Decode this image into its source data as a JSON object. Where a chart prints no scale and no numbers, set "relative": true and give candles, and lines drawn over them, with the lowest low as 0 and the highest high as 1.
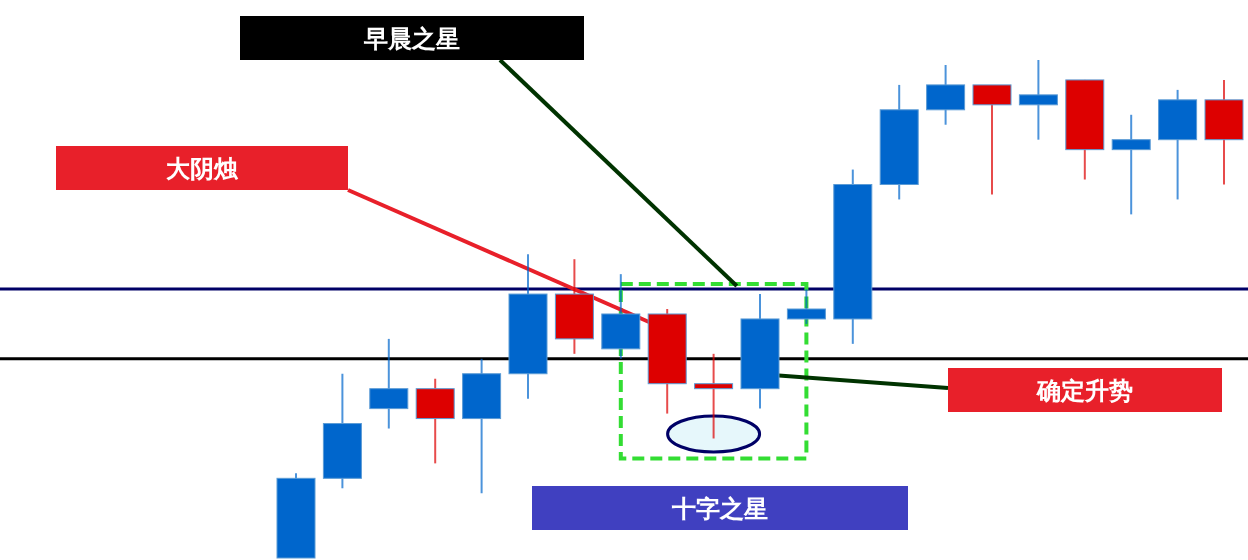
{
  "chart_data": {
    "type": "candlestick",
    "relative": true,
    "categories": [
      null,
      null,
      null,
      null,
      null,
      null,
      null,
      null,
      null,
      null,
      null,
      null,
      null,
      null,
      null,
      null,
      null,
      null,
      null,
      null,
      null
    ],
    "ohlc": [
      [
        0,
        0.17,
        0,
        0.16
      ],
      [
        0.16,
        0.37,
        0.14,
        0.27
      ],
      [
        0.3,
        0.44,
        0.26,
        0.34
      ],
      [
        0.34,
        0.36,
        0.19,
        0.28
      ],
      [
        0.28,
        0.4,
        0.13,
        0.37
      ],
      [
        0.37,
        0.61,
        0.32,
        0.53
      ],
      [
        0.53,
        0.6,
        0.41,
        0.44
      ],
      [
        0.42,
        0.57,
        0.4,
        0.49
      ],
      [
        0.49,
        0.5,
        0.29,
        0.35
      ],
      [
        0.35,
        0.41,
        0.24,
        0.34
      ],
      [
        0.34,
        0.53,
        0.3,
        0.48
      ],
      [
        0.48,
        0.54,
        0.47,
        0.5
      ],
      [
        0.48,
        0.78,
        0.43,
        0.75
      ],
      [
        0.75,
        0.95,
        0.72,
        0.9
      ],
      [
        0.9,
        0.99,
        0.87,
        0.95
      ],
      [
        0.95,
        0.95,
        0.73,
        0.91
      ],
      [
        0.91,
        1,
        0.84,
        0.93
      ],
      [
        0.96,
        0.96,
        0.76,
        0.82
      ],
      [
        0.82,
        0.89,
        0.69,
        0.84
      ],
      [
        0.84,
        0.94,
        0.72,
        0.92
      ],
      [
        0.92,
        0.96,
        0.75,
        0.84
      ]
    ],
    "colors": [
      "#0066cc",
      "#0066cc",
      "#0066cc",
      "#dd0000",
      "#0066cc",
      "#0066cc",
      "#dd0000",
      "#0066cc",
      "#dd0000",
      "#dd0000",
      "#0066cc",
      "#0066cc",
      "#0066cc",
      "#0066cc",
      "#0066cc",
      "#dd0000",
      "#0066cc",
      "#dd0000",
      "#0066cc",
      "#0066cc",
      "#dd0000"
    ],
    "ref_lines": [
      {
        "axis": "y",
        "value": 0.54,
        "color": "#000066"
      },
      {
        "axis": "y",
        "value": 0.4,
        "color": "#000000"
      }
    ],
    "annotations": [
      "早晨之星",
      "大阴烛",
      "确定升势",
      "十字之星"
    ]
  }
}
